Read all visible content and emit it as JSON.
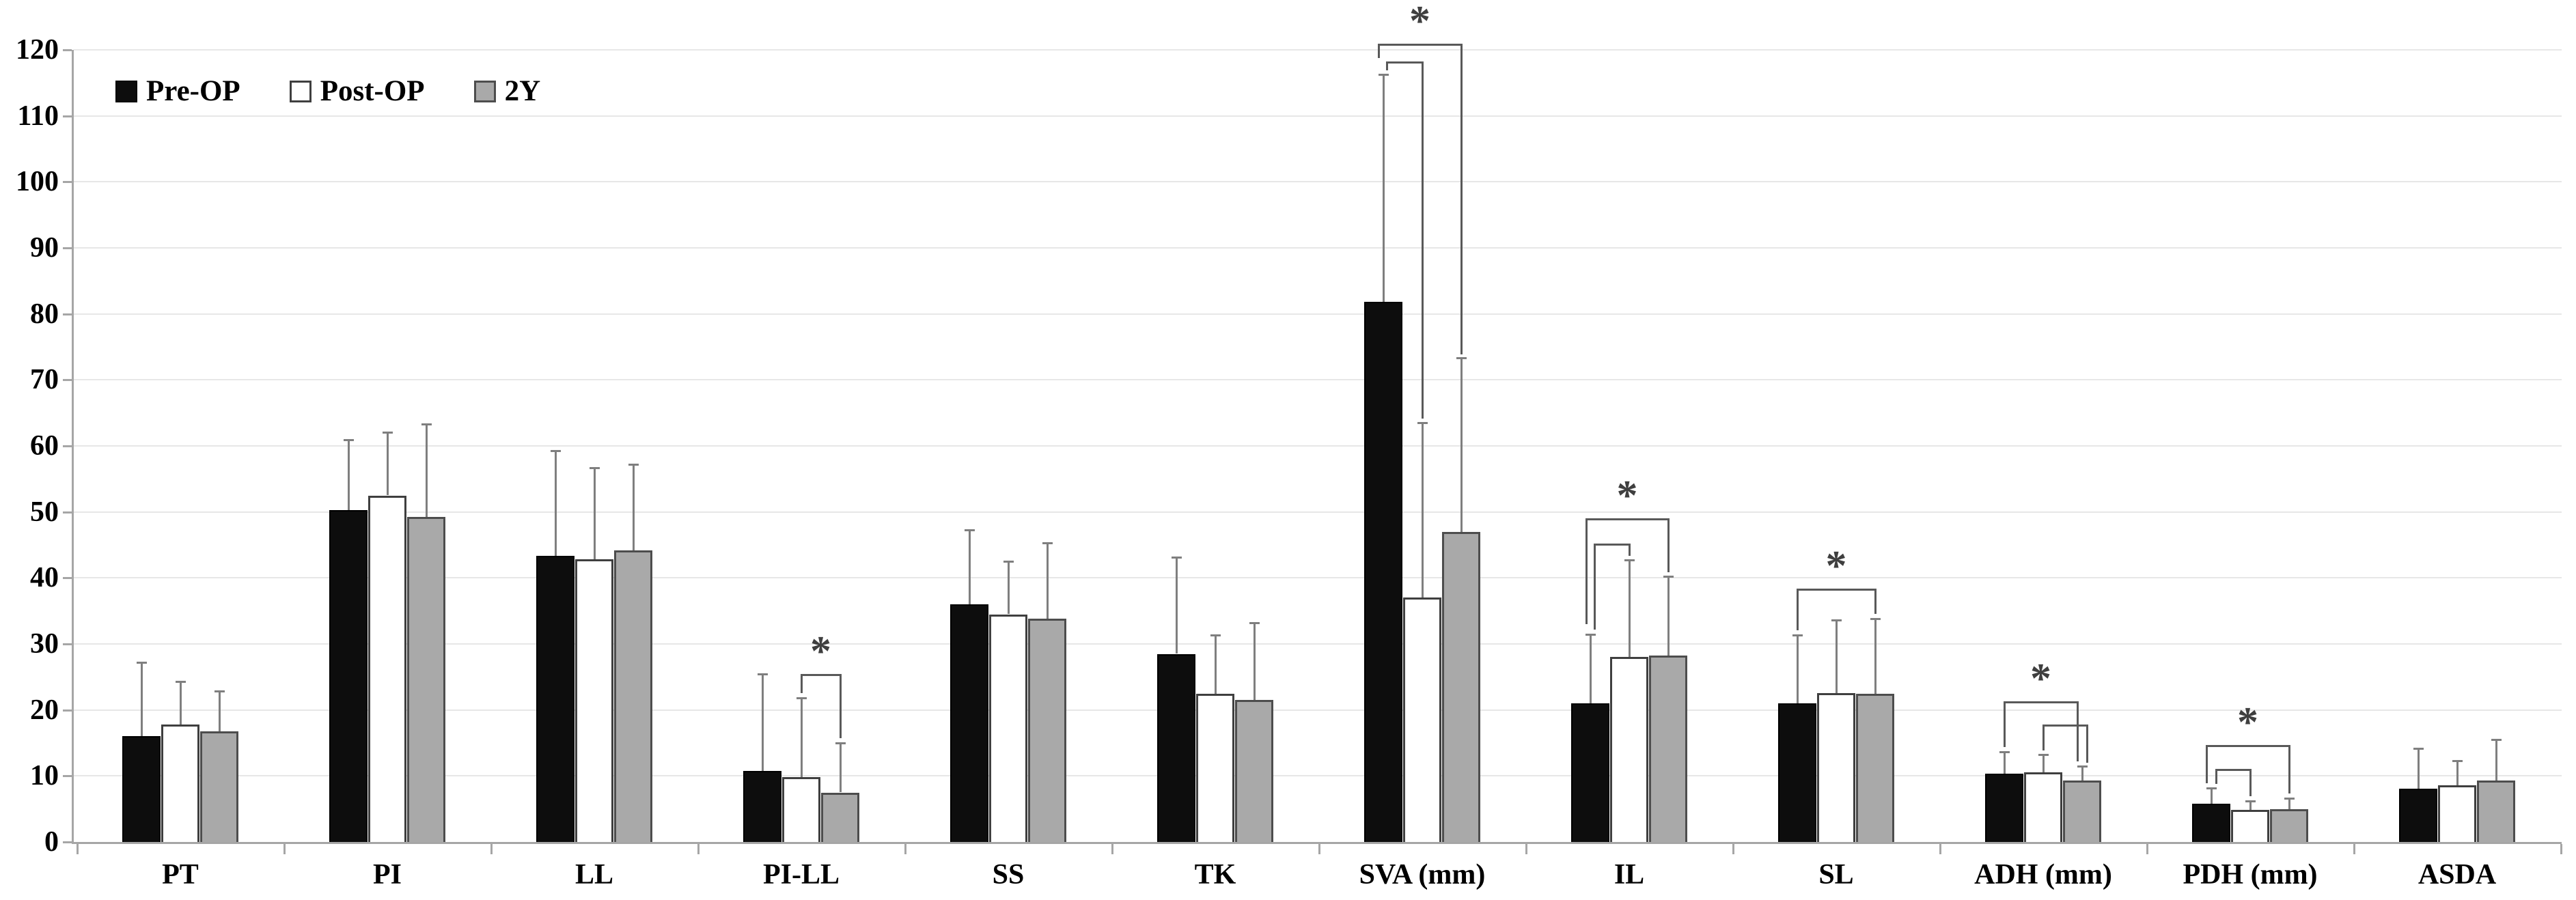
{
  "legend": {
    "items": [
      {
        "label": "Pre-OP"
      },
      {
        "label": "Post-OP"
      },
      {
        "label": "2Y"
      }
    ]
  },
  "chart_data": {
    "type": "bar",
    "title": "",
    "xlabel": "",
    "ylabel": "",
    "grid": true,
    "legend_position": "top-left",
    "y_axis": {
      "min": 0,
      "max": 120,
      "step": 10,
      "tick_labels": [
        "0",
        "10",
        "20",
        "30",
        "40",
        "50",
        "60",
        "70",
        "80",
        "90",
        "100",
        "110",
        "120"
      ]
    },
    "categories": [
      "PT",
      "PI",
      "LL",
      "PI-LL",
      "SS",
      "TK",
      "SVA (mm)",
      "IL",
      "SL",
      "ADH (mm)",
      "PDH (mm)",
      "ASDA"
    ],
    "series": [
      {
        "name": "Pre-OP",
        "fill": "#0d0d0d",
        "border": "#000000",
        "border_px": 2,
        "values": [
          16.0,
          50.3,
          43.3,
          10.8,
          36.0,
          28.5,
          81.8,
          21.0,
          21.0,
          10.3,
          5.8,
          8.1
        ],
        "error_tops": [
          27.3,
          61.0,
          59.4,
          25.6,
          47.4,
          43.2,
          116.4,
          31.6,
          31.5,
          13.8,
          8.3,
          14.3
        ]
      },
      {
        "name": "Post-OP",
        "fill": "#ffffff",
        "border": "#3f3f3f",
        "border_px": 3,
        "values": [
          17.8,
          52.5,
          42.8,
          9.8,
          34.5,
          22.4,
          37.0,
          28.0,
          22.6,
          10.6,
          4.9,
          8.6
        ],
        "error_tops": [
          24.4,
          62.2,
          56.8,
          21.9,
          42.6,
          31.5,
          63.6,
          42.8,
          33.7,
          13.3,
          6.3,
          12.4
        ]
      },
      {
        "name": "2Y",
        "fill": "#a9a9a9",
        "border": "#4d4d4d",
        "border_px": 3,
        "values": [
          16.8,
          49.2,
          44.2,
          7.5,
          33.8,
          21.5,
          47.0,
          28.2,
          22.4,
          9.3,
          5.0,
          9.3
        ],
        "error_tops": [
          23.0,
          63.4,
          57.3,
          15.1,
          45.4,
          33.3,
          73.4,
          40.3,
          33.9,
          11.6,
          6.7,
          15.6
        ]
      }
    ],
    "significance": [
      {
        "cat": 3,
        "a": 1,
        "b": 2,
        "level": 25.4,
        "a_end": 22.5,
        "b_end": 15.7,
        "star": true
      },
      {
        "cat": 6,
        "a": 0,
        "b": 1,
        "level": 118.2,
        "a_end": 116.9,
        "b_end": 64.1,
        "a_off": 5
      },
      {
        "cat": 6,
        "a": 0,
        "b": 2,
        "level": 120.9,
        "a_end": 118.8,
        "b_end": 73.9,
        "a_off": -7,
        "star": true
      },
      {
        "cat": 7,
        "a": 0,
        "b": 1,
        "level": 45.2,
        "a_end": 32.2,
        "b_end": 43.3,
        "a_off": 6
      },
      {
        "cat": 7,
        "a": 0,
        "b": 2,
        "level": 49.0,
        "a_end": 33.0,
        "b_end": 40.9,
        "a_off": -6,
        "star": true
      },
      {
        "cat": 8,
        "a": 0,
        "b": 2,
        "level": 38.4,
        "a_end": 32.1,
        "b_end": 34.5,
        "star": true
      },
      {
        "cat": 9,
        "a": 0,
        "b": 2,
        "level": 21.3,
        "a_end": 14.4,
        "b_end": 12.2,
        "b_off": -7,
        "star": true
      },
      {
        "cat": 9,
        "a": 1,
        "b": 2,
        "level": 17.8,
        "a_end": 13.9,
        "b_end": 12.0,
        "b_off": 7
      },
      {
        "cat": 10,
        "a": 0,
        "b": 1,
        "level": 11.1,
        "a_end": 8.8,
        "b_end": 6.9,
        "a_off": 7
      },
      {
        "cat": 10,
        "a": 0,
        "b": 2,
        "level": 14.7,
        "a_end": 8.9,
        "b_end": 7.3,
        "a_off": -7,
        "star": true
      }
    ],
    "star_symbol": "*",
    "colors": {
      "gridline": "#e7e7e7",
      "axis": "#a6a6a6",
      "error_bar": "#7f7f7f",
      "bracket": "#595959",
      "star": "#3f3f3f",
      "text": "#000000"
    }
  }
}
